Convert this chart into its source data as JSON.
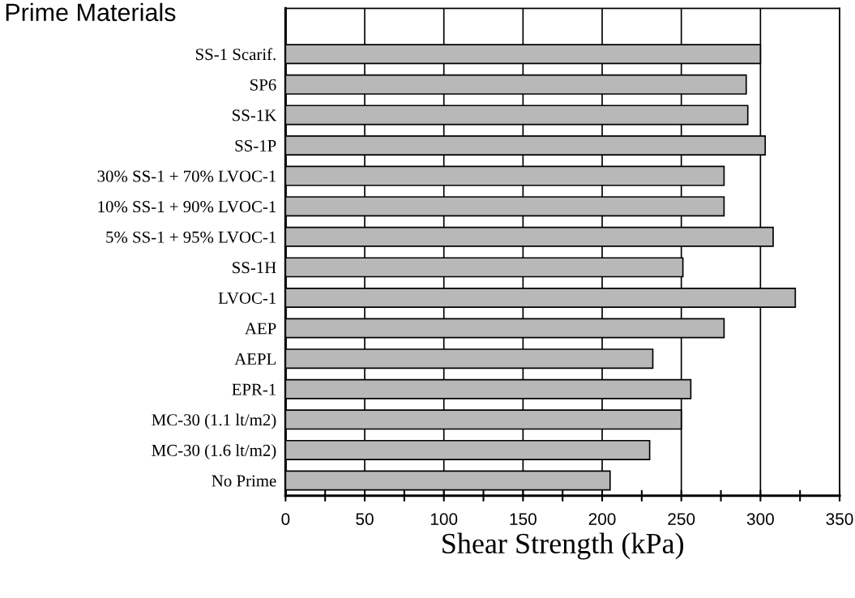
{
  "chart_data": {
    "type": "bar",
    "orientation": "horizontal",
    "title": "Prime Materials",
    "xlabel": "Shear Strength (kPa)",
    "categories": [
      "SS-1 Scarif.",
      "SP6",
      "SS-1K",
      "SS-1P",
      "30% SS-1 + 70% LVOC-1",
      "10% SS-1 + 90% LVOC-1",
      "5% SS-1 + 95% LVOC-1",
      "SS-1H",
      "LVOC-1",
      "AEP",
      "AEPL",
      "EPR-1",
      "MC-30 (1.1 lt/m2)",
      "MC-30 (1.6 lt/m2)",
      "No Prime"
    ],
    "values": [
      300,
      291,
      292,
      303,
      277,
      277,
      308,
      251,
      322,
      277,
      232,
      256,
      250,
      230,
      205
    ],
    "color": "#b8b8b8",
    "xlim": [
      0,
      350
    ],
    "xticks": [
      0,
      {
        "value": 25,
        "label": null
      },
      50,
      {
        "value": 75,
        "label": null
      },
      100,
      {
        "value": 125,
        "label": null
      },
      150,
      {
        "value": 175,
        "label": null
      },
      200,
      {
        "value": 225,
        "label": null
      },
      250,
      {
        "value": 275,
        "label": null
      },
      300,
      {
        "value": 325,
        "label": null
      },
      350
    ],
    "grid": "x",
    "legend": false
  }
}
